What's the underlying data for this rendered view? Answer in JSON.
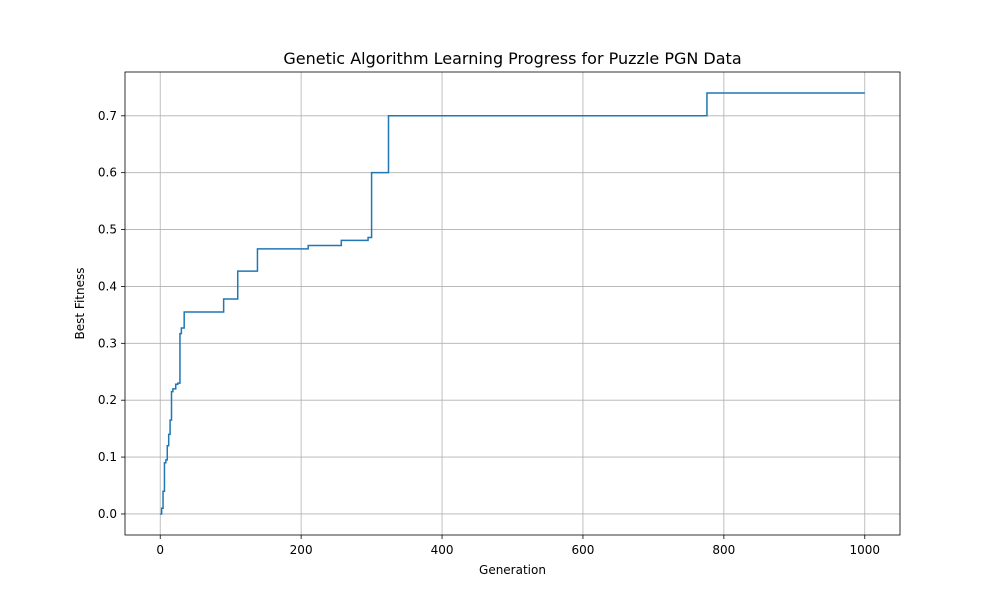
{
  "chart_data": {
    "type": "line",
    "title": "Genetic Algorithm Learning Progress for Puzzle PGN Data",
    "xlabel": "Generation",
    "ylabel": "Best Fitness",
    "xlim": [
      -50,
      1050
    ],
    "ylim": [
      -0.037,
      0.777
    ],
    "xticks": [
      0,
      200,
      400,
      600,
      800,
      1000
    ],
    "yticks": [
      0.0,
      0.1,
      0.2,
      0.3,
      0.4,
      0.5,
      0.6,
      0.7
    ],
    "ytick_labels": [
      "0.0",
      "0.1",
      "0.2",
      "0.3",
      "0.4",
      "0.5",
      "0.6",
      "0.7"
    ],
    "grid": true,
    "color": "#1f77b4",
    "series": [
      {
        "x": [
          0,
          2,
          4,
          6,
          8,
          10,
          12,
          14,
          16,
          18,
          20,
          22,
          25,
          28,
          30,
          34,
          90,
          110,
          138,
          210,
          257,
          295,
          300,
          324,
          776,
          1000
        ],
        "y": [
          0.0,
          0.01,
          0.04,
          0.09,
          0.095,
          0.12,
          0.14,
          0.165,
          0.215,
          0.22,
          0.22,
          0.228,
          0.23,
          0.317,
          0.327,
          0.355,
          0.378,
          0.427,
          0.466,
          0.472,
          0.481,
          0.486,
          0.6,
          0.7,
          0.74,
          0.74
        ]
      }
    ]
  }
}
